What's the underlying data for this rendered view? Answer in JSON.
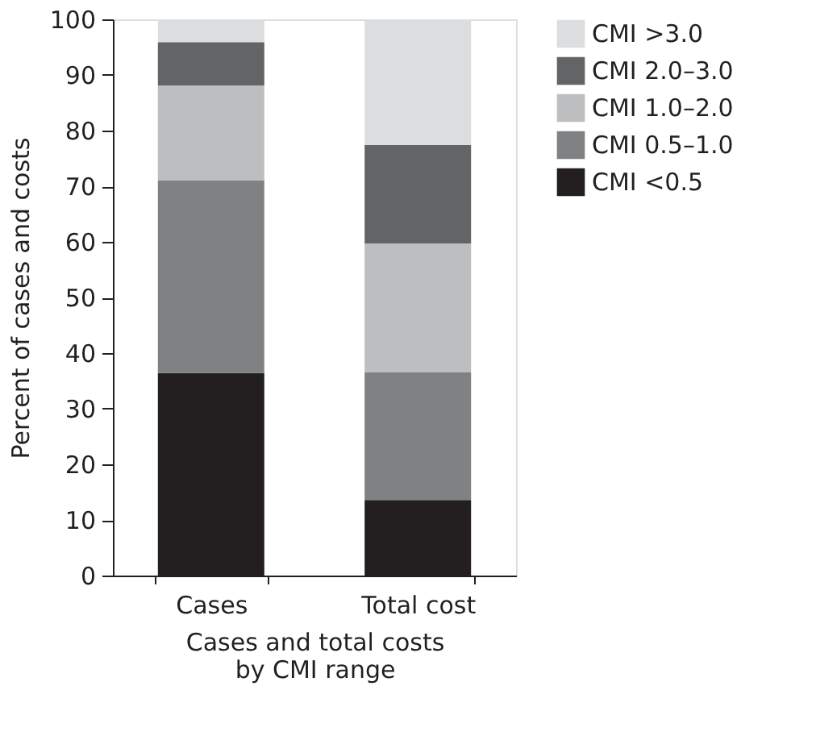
{
  "chart_data": {
    "type": "bar",
    "stacked": true,
    "categories": [
      "Cases",
      "Total cost"
    ],
    "xlabel": "Cases and total costs\nby CMI range",
    "ylabel": "Percent of cases and costs",
    "ylim": [
      0,
      100
    ],
    "yticks": [
      0,
      10,
      20,
      30,
      40,
      50,
      60,
      70,
      80,
      90,
      100
    ],
    "grid": false,
    "legend": "top right",
    "series": [
      {
        "name": "CMI <0.5",
        "color": "#231f20",
        "values": [
          36.4,
          13.6
        ]
      },
      {
        "name": "CMI 0.5–1.0",
        "color": "#808182",
        "values": [
          34.6,
          23.0
        ]
      },
      {
        "name": "CMI 1.0–2.0",
        "color": "#bdbebf",
        "values": [
          17.1,
          23.1
        ]
      },
      {
        "name": "CMI 2.0–3.0",
        "color": "#636466",
        "values": [
          7.8,
          17.7
        ]
      },
      {
        "name": "CMI >3.0",
        "color": "#dcdddf",
        "values": [
          4.1,
          22.6
        ]
      }
    ]
  }
}
